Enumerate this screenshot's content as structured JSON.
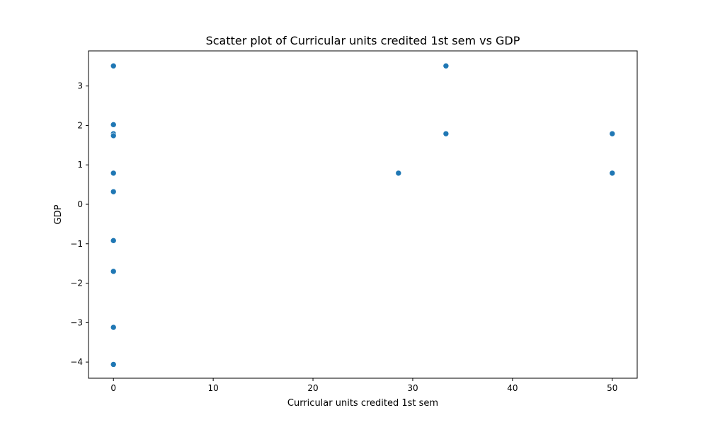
{
  "chart_data": {
    "type": "scatter",
    "title": "Scatter plot of Curricular units credited 1st sem vs GDP",
    "xlabel": "Curricular units credited 1st sem",
    "ylabel": "GDP",
    "xlim": [
      -2.5,
      52.5
    ],
    "ylim": [
      -4.41,
      3.89
    ],
    "x_ticks": [
      0,
      10,
      20,
      30,
      40,
      50
    ],
    "x_tick_labels": [
      "0",
      "10",
      "20",
      "30",
      "40",
      "50"
    ],
    "y_ticks": [
      -4,
      -3,
      -2,
      -1,
      0,
      1,
      2,
      3
    ],
    "y_tick_labels": [
      "−4",
      "−3",
      "−2",
      "−1",
      "0",
      "1",
      "2",
      "3"
    ],
    "grid": false,
    "marker_color": "#1f77b4",
    "points": [
      {
        "x": 0,
        "y": 3.51
      },
      {
        "x": 0,
        "y": 2.02
      },
      {
        "x": 0,
        "y": 1.79
      },
      {
        "x": 0,
        "y": 1.74
      },
      {
        "x": 0,
        "y": 0.79
      },
      {
        "x": 0,
        "y": 0.32
      },
      {
        "x": 0,
        "y": -0.92
      },
      {
        "x": 0,
        "y": -1.7
      },
      {
        "x": 0,
        "y": -3.12
      },
      {
        "x": 0,
        "y": -4.06
      },
      {
        "x": 28.57,
        "y": 0.79
      },
      {
        "x": 33.33,
        "y": 3.51
      },
      {
        "x": 33.33,
        "y": 1.79
      },
      {
        "x": 50,
        "y": 1.79
      },
      {
        "x": 50,
        "y": 0.79
      }
    ]
  }
}
